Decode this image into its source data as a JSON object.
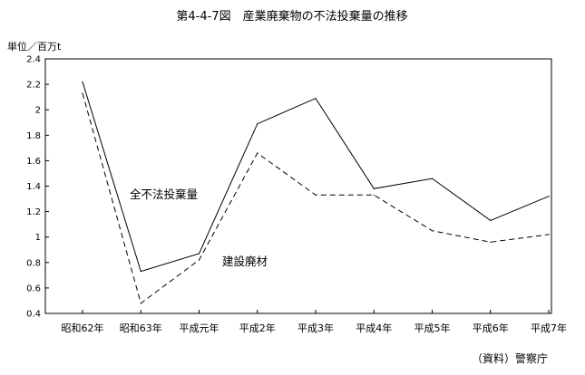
{
  "chart_data": {
    "type": "line",
    "title": "第4-4-7図　産業廃棄物の不法投棄量の推移",
    "ylabel": "単位／百万t",
    "xlabel": "",
    "categories": [
      "昭和62年",
      "昭和63年",
      "平成元年",
      "平成2年",
      "平成3年",
      "平成4年",
      "平成5年",
      "平成6年",
      "平成7年"
    ],
    "ylim": [
      0.4,
      2.4
    ],
    "yticks": [
      "0.4",
      "0.6",
      "0.8",
      "1",
      "1.2",
      "1.4",
      "1.6",
      "1.8",
      "2",
      "2.2",
      "2.4"
    ],
    "grid": false,
    "series": [
      {
        "name": "全不法投棄量",
        "style": "solid",
        "values": [
          2.22,
          0.73,
          0.87,
          1.89,
          2.09,
          1.38,
          1.46,
          1.13,
          1.32
        ]
      },
      {
        "name": "建設廃材",
        "style": "dashed",
        "values": [
          2.13,
          0.48,
          0.82,
          1.66,
          1.33,
          1.33,
          1.05,
          0.96,
          1.02
        ]
      }
    ],
    "source": "（資料）警察庁",
    "line_color": "#000000"
  }
}
